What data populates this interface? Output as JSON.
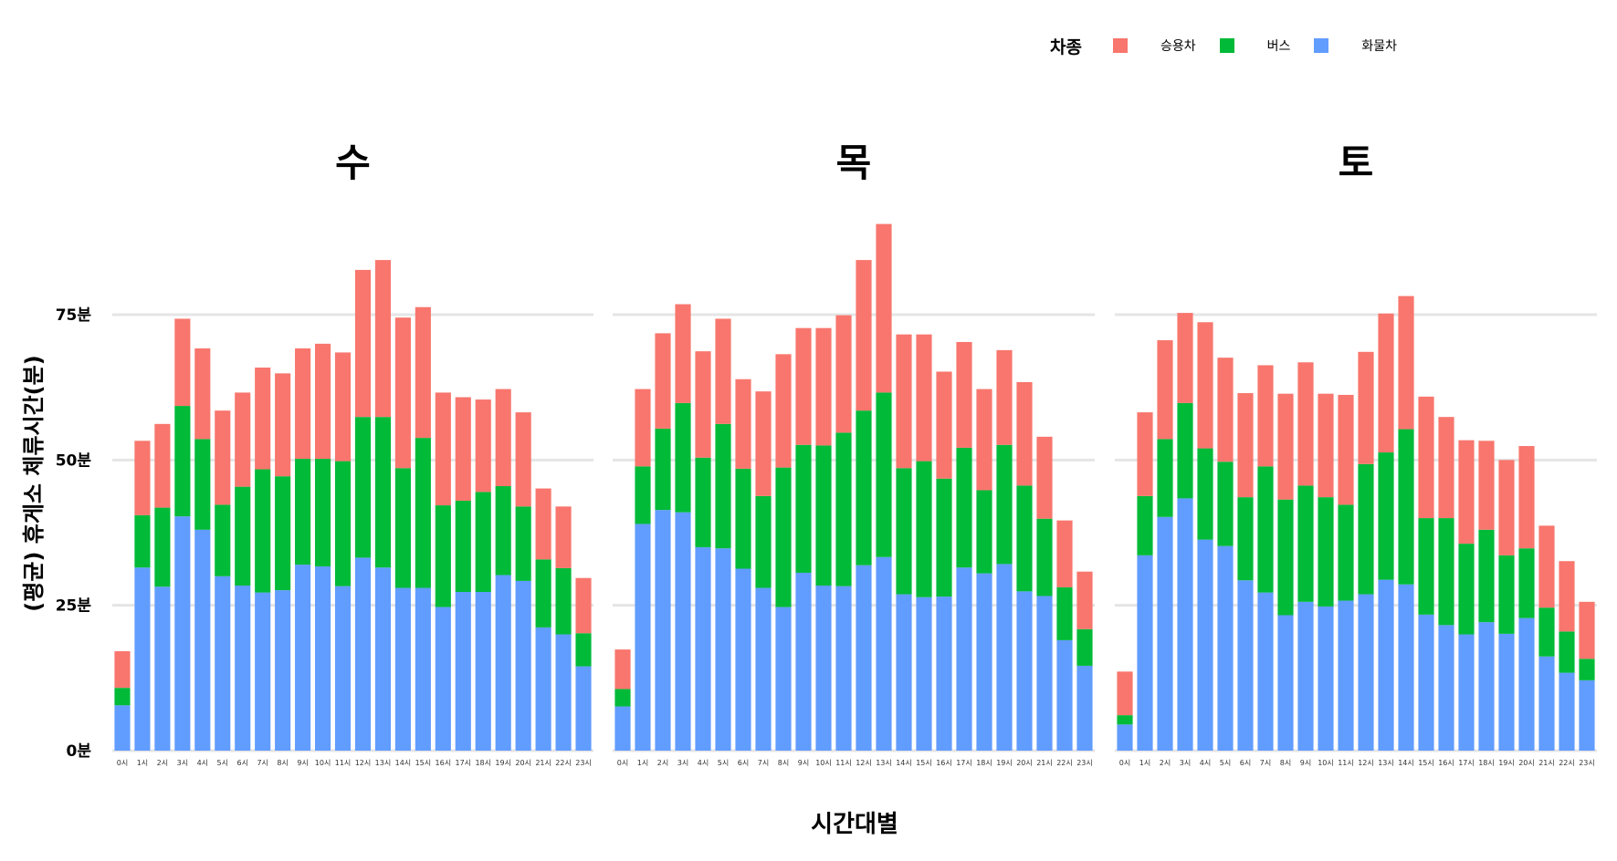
{
  "legend": {
    "title": "차종",
    "items": [
      {
        "label": "승용차",
        "color": "#F8766D"
      },
      {
        "label": "버스",
        "color": "#00BA38"
      },
      {
        "label": "화물차",
        "color": "#619CFF"
      }
    ]
  },
  "chart_data": {
    "type": "bar",
    "stacked": true,
    "ylabel": "(평균) 휴게소 체류시간(분)",
    "xlabel": "시간대별",
    "ylim": [
      0,
      95
    ],
    "yticks": [
      "0분",
      "25분",
      "50분",
      "75분"
    ],
    "ytick_values": [
      0,
      25,
      50,
      75
    ],
    "grid": true,
    "legend_position": "top-right",
    "categories": [
      "0시",
      "1시",
      "2시",
      "3시",
      "4시",
      "5시",
      "6시",
      "7시",
      "8시",
      "9시",
      "10시",
      "11시",
      "12시",
      "13시",
      "14시",
      "15시",
      "16시",
      "17시",
      "18시",
      "19시",
      "20시",
      "21시",
      "22시",
      "23시"
    ],
    "panels": [
      {
        "title": "수",
        "series": [
          {
            "name": "화물차",
            "color": "#619CFF",
            "values": [
              7.8,
              31.5,
              28.2,
              40.3,
              38,
              30,
              28.4,
              27.2,
              27.6,
              32,
              31.7,
              28.3,
              33.2,
              31.5,
              28,
              28,
              24.7,
              27.3,
              27.3,
              30.2,
              29.2,
              21.2,
              20,
              14.5
            ]
          },
          {
            "name": "버스",
            "color": "#00BA38",
            "values": [
              3,
              9,
              13.6,
              19,
              15.6,
              12.3,
              17,
              21.2,
              19.6,
              18.2,
              18.5,
              21.5,
              24.2,
              25.9,
              20.6,
              25.8,
              17.5,
              15.7,
              17.2,
              15.3,
              12.8,
              11.7,
              11.4,
              5.7
            ]
          },
          {
            "name": "승용차",
            "color": "#F8766D",
            "values": [
              6.3,
              12.8,
              14.4,
              15,
              15.6,
              16.2,
              16.2,
              17.5,
              17.7,
              19,
              19.8,
              18.7,
              25.3,
              27,
              25.9,
              22.5,
              19.4,
              17.8,
              15.9,
              16.7,
              16.2,
              12.2,
              10.6,
              9.5
            ]
          }
        ]
      },
      {
        "title": "목",
        "series": [
          {
            "name": "화물차",
            "color": "#619CFF",
            "values": [
              7.6,
              39,
              41.4,
              41,
              35,
              34.8,
              31.3,
              28,
              24.7,
              30.6,
              28.4,
              28.3,
              31.9,
              33.3,
              26.9,
              26.4,
              26.5,
              31.5,
              30.5,
              32.1,
              27.4,
              26.6,
              19,
              14.6
            ]
          },
          {
            "name": "버스",
            "color": "#00BA38",
            "values": [
              3,
              9.9,
              14,
              18.8,
              15.4,
              21.4,
              17.2,
              15.8,
              24,
              22,
              24.1,
              26.4,
              26.6,
              28.3,
              21.7,
              23.4,
              20.3,
              20.6,
              14.3,
              20.5,
              18.2,
              13.3,
              9.1,
              6.3
            ]
          },
          {
            "name": "승용차",
            "color": "#F8766D",
            "values": [
              6.8,
              13.3,
              16.4,
              17,
              18.3,
              18.1,
              15.4,
              18,
              19.5,
              20.1,
              20.2,
              20.2,
              25.9,
              29,
              23,
              21.8,
              18.4,
              18.2,
              17.4,
              16.3,
              17.8,
              14.1,
              11.5,
              9.9
            ]
          }
        ]
      },
      {
        "title": "토",
        "series": [
          {
            "name": "화물차",
            "color": "#619CFF",
            "values": [
              4.5,
              33.6,
              40.2,
              43.4,
              36.3,
              35.2,
              29.3,
              27.2,
              23.3,
              25.6,
              24.8,
              25.8,
              26.9,
              29.4,
              28.6,
              23.4,
              21.6,
              20,
              22.1,
              20.1,
              22.8,
              16.2,
              13.4,
              12.1
            ]
          },
          {
            "name": "버스",
            "color": "#00BA38",
            "values": [
              1.6,
              10.2,
              13.4,
              16.4,
              15.7,
              14.5,
              14.3,
              21.7,
              19.9,
              20,
              18.8,
              16.5,
              22.4,
              21.9,
              26.7,
              16.6,
              18.4,
              15.6,
              15.9,
              13.5,
              12,
              8.4,
              7.1,
              3.7
            ]
          },
          {
            "name": "승용차",
            "color": "#F8766D",
            "values": [
              7.5,
              14.4,
              17,
              15.5,
              21.7,
              17.9,
              17.9,
              17.4,
              18.2,
              21.2,
              17.8,
              18.9,
              19.3,
              23.9,
              22.9,
              20.9,
              17.4,
              17.8,
              15.3,
              16.4,
              17.6,
              14.1,
              12.1,
              9.8
            ]
          }
        ]
      }
    ]
  }
}
